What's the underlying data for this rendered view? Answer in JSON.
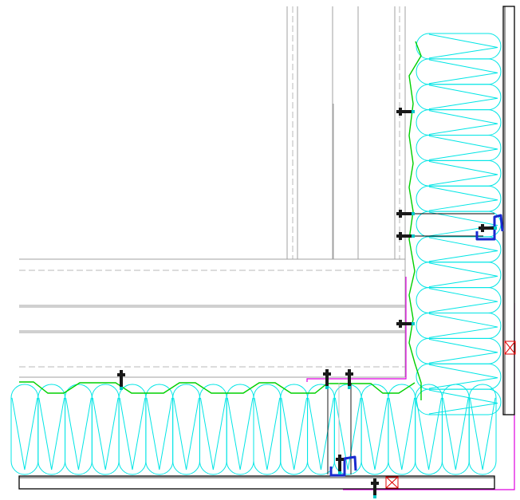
{
  "drawing": {
    "view": "corner-section-detail",
    "background": "#ffffff",
    "colors": {
      "frame_line": "#a0a0a0",
      "frame_dash": "#b8b8b8",
      "insulation": "#00e5e5",
      "membrane": "#00d000",
      "cladding": "#000000",
      "fastener": "#1a1a1a",
      "fastener_tip": "#00c8c8",
      "clip_bracket": "#1a2ad0",
      "flashing": "#e000e0",
      "spacer_cross": "#e00000"
    },
    "vertical_insulation_lobes": 15,
    "horizontal_insulation_lobes": 18,
    "components": [
      "steel-frame",
      "insulation",
      "breather-membrane",
      "fasteners",
      "support-brackets",
      "cladding-panels",
      "corner-flashing",
      "spacer-blocks"
    ]
  }
}
